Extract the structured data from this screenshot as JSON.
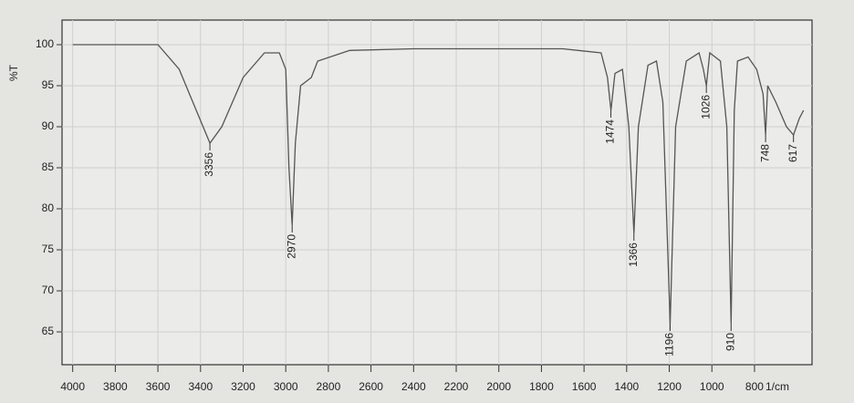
{
  "chart_data": {
    "type": "line",
    "y_label": "%T",
    "x_label": "1/cm",
    "x": [
      4000,
      3600,
      3500,
      3420,
      3356,
      3300,
      3200,
      3100,
      3030,
      3000,
      2985,
      2970,
      2955,
      2930,
      2880,
      2850,
      2700,
      2400,
      2000,
      1700,
      1520,
      1490,
      1474,
      1455,
      1420,
      1390,
      1366,
      1345,
      1300,
      1260,
      1230,
      1196,
      1170,
      1120,
      1060,
      1040,
      1026,
      1010,
      960,
      930,
      910,
      895,
      880,
      830,
      790,
      760,
      748,
      738,
      700,
      650,
      617,
      590,
      570
    ],
    "values": [
      100,
      100,
      97,
      92,
      88,
      90,
      96,
      99,
      99,
      97,
      85,
      78,
      88,
      95,
      96,
      98,
      99.3,
      99.5,
      99.5,
      99.5,
      99,
      96,
      92,
      96.5,
      97,
      90,
      77,
      90,
      97.5,
      98,
      93,
      66,
      90,
      98,
      99,
      97,
      95,
      99,
      98,
      90,
      66,
      92,
      98,
      98.5,
      97,
      94,
      89,
      95,
      93,
      90,
      89,
      91,
      92
    ],
    "color": "#555555",
    "peaks": [
      {
        "x": 3356,
        "y": 88
      },
      {
        "x": 2970,
        "y": 78
      },
      {
        "x": 1474,
        "y": 92
      },
      {
        "x": 1366,
        "y": 77
      },
      {
        "x": 1196,
        "y": 66
      },
      {
        "x": 1026,
        "y": 95
      },
      {
        "x": 910,
        "y": 66
      },
      {
        "x": 748,
        "y": 89
      },
      {
        "x": 617,
        "y": 89
      }
    ],
    "xlim": [
      4050,
      530
    ],
    "ylim": [
      61,
      103
    ],
    "xticks": [
      4000,
      3800,
      3600,
      3400,
      3200,
      3000,
      2800,
      2600,
      2400,
      2200,
      2000,
      1800,
      1600,
      1400,
      1200,
      1000,
      800
    ],
    "yticks": [
      65,
      70,
      75,
      80,
      85,
      90,
      95,
      100
    ],
    "grid": true
  }
}
